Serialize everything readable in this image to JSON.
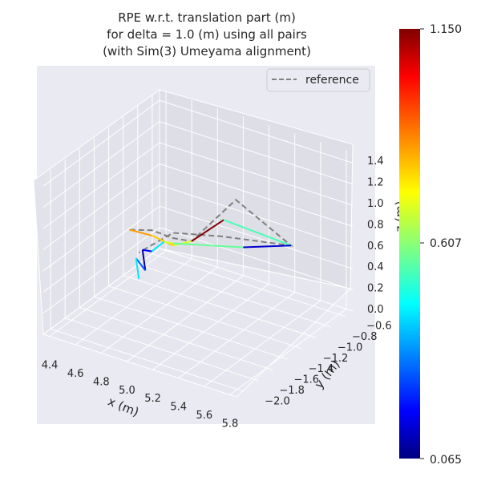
{
  "chart_data": {
    "type": "line",
    "projection": "3d",
    "title_lines": [
      "RPE w.r.t. translation part (m)",
      "for delta = 1.0 (m) using all pairs",
      "(with Sim(3) Umeyama alignment)"
    ],
    "xlabel": "x (m)",
    "ylabel": "y (m)",
    "zlabel": "z (m)",
    "xticks": [
      "4.4",
      "4.6",
      "4.8",
      "5.0",
      "5.2",
      "5.4",
      "5.6",
      "5.8"
    ],
    "yticks": [
      "−2.0",
      "−1.8",
      "−1.6",
      "−1.4",
      "−1.2",
      "−1.0",
      "−0.8",
      "−0.6"
    ],
    "zticks": [
      "0.0",
      "0.2",
      "0.4",
      "0.6",
      "0.8",
      "1.0",
      "1.2",
      "1.4"
    ],
    "legend": {
      "label": "reference",
      "position": "top-right",
      "style": "dashed",
      "color": "#808080"
    },
    "grid": true,
    "colormap": "jet",
    "colorbar": {
      "min": 0.065,
      "max": 1.15,
      "ticks": [
        "0.065",
        "0.607",
        "1.150"
      ]
    },
    "reference_path": [
      [
        4.4,
        -1.0,
        0.45
      ],
      [
        4.6,
        -1.05,
        0.55
      ],
      [
        4.85,
        -1.2,
        0.65
      ],
      [
        5.05,
        -1.3,
        0.75
      ],
      [
        5.45,
        -1.4,
        1.35
      ],
      [
        5.85,
        -1.35,
        1.05
      ],
      [
        5.25,
        -1.25,
        0.85
      ],
      [
        4.85,
        -1.2,
        0.7
      ],
      [
        4.5,
        -1.05,
        0.3
      ]
    ],
    "estimate_segments": [
      {
        "from": [
          4.4,
          -1.0,
          0.45
        ],
        "to": [
          4.6,
          -1.05,
          0.5
        ],
        "error": 0.85
      },
      {
        "from": [
          4.6,
          -1.05,
          0.5
        ],
        "to": [
          4.85,
          -1.2,
          0.58
        ],
        "error": 0.8
      },
      {
        "from": [
          4.85,
          -1.2,
          0.58
        ],
        "to": [
          5.05,
          -1.3,
          0.75
        ],
        "error": 0.7
      },
      {
        "from": [
          5.05,
          -1.3,
          0.75
        ],
        "to": [
          5.3,
          -1.3,
          1.05
        ],
        "error": 1.15
      },
      {
        "from": [
          5.3,
          -1.3,
          1.05
        ],
        "to": [
          5.85,
          -1.35,
          1.05
        ],
        "error": 0.55
      },
      {
        "from": [
          5.85,
          -1.35,
          1.05
        ],
        "to": [
          5.45,
          -1.3,
          0.85
        ],
        "error": 0.15
      },
      {
        "from": [
          5.45,
          -1.3,
          0.85
        ],
        "to": [
          4.85,
          -1.2,
          0.6
        ],
        "error": 0.58
      },
      {
        "from": [
          4.85,
          -1.2,
          0.6
        ],
        "to": [
          4.75,
          -1.15,
          0.55
        ],
        "error": 0.7
      },
      {
        "from": [
          4.75,
          -1.15,
          0.55
        ],
        "to": [
          4.6,
          -1.05,
          0.35
        ],
        "error": 0.45
      },
      {
        "from": [
          4.6,
          -1.05,
          0.35
        ],
        "to": [
          4.5,
          -1.0,
          0.3
        ],
        "error": 0.2
      },
      {
        "from": [
          4.5,
          -1.0,
          0.3
        ],
        "to": [
          4.55,
          -1.05,
          0.15
        ],
        "error": 0.1
      },
      {
        "from": [
          4.55,
          -1.05,
          0.15
        ],
        "to": [
          4.45,
          -1.0,
          0.2
        ],
        "error": 0.3
      },
      {
        "from": [
          4.45,
          -1.0,
          0.2
        ],
        "to": [
          4.5,
          -1.05,
          0.05
        ],
        "error": 0.45
      }
    ]
  }
}
